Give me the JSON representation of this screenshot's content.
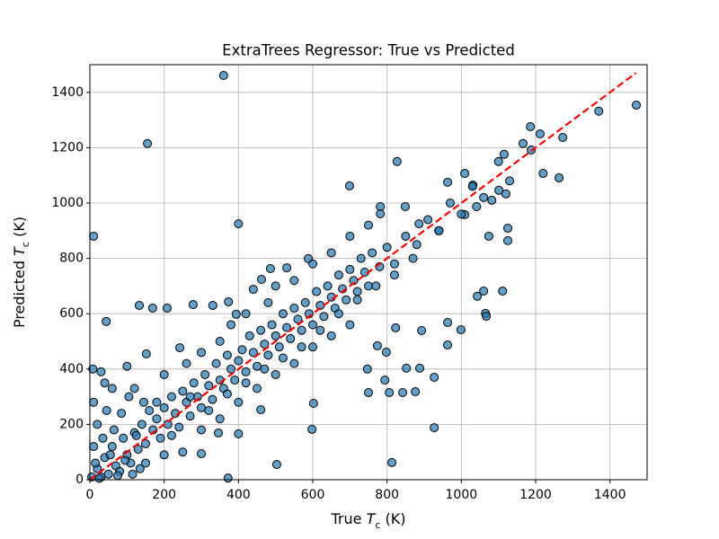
{
  "chart_data": {
    "type": "scatter",
    "title": "ExtraTrees Regressor: True vs Predicted",
    "xlabel": [
      "True ",
      "T",
      "c",
      " (K)"
    ],
    "ylabel": [
      "Predicted ",
      "T",
      "c",
      " (K)"
    ],
    "xlim": [
      0,
      1500
    ],
    "ylim": [
      0,
      1500
    ],
    "xticks": [
      0,
      200,
      400,
      600,
      800,
      1000,
      1200,
      1400
    ],
    "yticks": [
      0,
      200,
      400,
      600,
      800,
      1000,
      1200,
      1400
    ],
    "grid": true,
    "x": [
      360,
      155,
      10,
      400,
      372,
      813,
      503,
      927,
      1471,
      1370,
      1186,
      1212,
      1273,
      1166,
      1188,
      1115,
      827,
      699,
      1263,
      1220,
      1009,
      963,
      1101,
      1120,
      849,
      782,
      1031,
      1041,
      1082,
      1125,
      1125,
      1074,
      1009,
      939,
      886,
      782,
      44,
      133,
      169,
      208,
      278,
      242,
      152,
      1065,
      1043,
      1060,
      1067,
      1111,
      963,
      963,
      893,
      999,
      823,
      774,
      747,
      750,
      794,
      806,
      852,
      888,
      842,
      876,
      927,
      798,
      602,
      598,
      460,
      346,
      400,
      300,
      530,
      486,
      588,
      462,
      440,
      373,
      331,
      394,
      20,
      30,
      40,
      50,
      60,
      70,
      80,
      90,
      100,
      110,
      120,
      130,
      140,
      150,
      160,
      170,
      180,
      190,
      200,
      210,
      220,
      230,
      240,
      250,
      260,
      270,
      280,
      290,
      300,
      310,
      320,
      330,
      340,
      350,
      360,
      370,
      380,
      390,
      400,
      410,
      420,
      430,
      440,
      450,
      460,
      470,
      480,
      490,
      500,
      510,
      520,
      530,
      540,
      550,
      560,
      570,
      580,
      590,
      600,
      610,
      620,
      630,
      640,
      650,
      660,
      670,
      680,
      690,
      700,
      710,
      720,
      730,
      740,
      750,
      760,
      780,
      800,
      820,
      850,
      880,
      910,
      940,
      970,
      1000,
      1030,
      1060,
      1100,
      1130,
      5,
      10,
      15,
      20,
      25,
      35,
      45,
      55,
      65,
      75,
      85,
      95,
      105,
      115,
      125,
      135,
      145,
      10,
      30,
      60,
      8,
      40,
      100,
      120,
      200,
      260,
      300,
      350,
      380,
      420,
      480,
      500,
      550,
      600,
      650,
      700,
      750,
      300,
      350,
      400,
      450,
      500,
      550,
      600,
      650,
      700,
      250,
      200,
      150,
      180,
      220,
      270,
      320,
      370,
      420,
      470,
      520,
      570,
      620,
      670,
      720,
      770,
      820,
      870
    ],
    "series": [
      {
        "color": "#1f77b4",
        "edgecolor": "#000000",
        "alpha": 0.7,
        "values": [
          1461,
          1215,
          880,
          925,
          6,
          62,
          55,
          188,
          1354,
          1332,
          1276,
          1250,
          1237,
          1215,
          1192,
          1176,
          1150,
          1062,
          1091,
          1107,
          1107,
          1075,
          1046,
          1033,
          987,
          987,
          1065,
          987,
          1010,
          909,
          864,
          880,
          958,
          900,
          925,
          961,
          572,
          630,
          620,
          620,
          633,
          477,
          455,
          601,
          663,
          682,
          591,
          682,
          568,
          487,
          539,
          542,
          549,
          484,
          400,
          315,
          360,
          315,
          403,
          403,
          315,
          318,
          370,
          461,
          276,
          182,
          253,
          169,
          166,
          94,
          766,
          763,
          799,
          724,
          688,
          643,
          630,
          598,
          40,
          10,
          80,
          20,
          120,
          50,
          30,
          150,
          90,
          60,
          170,
          110,
          200,
          130,
          250,
          180,
          220,
          150,
          260,
          200,
          300,
          240,
          190,
          320,
          280,
          230,
          350,
          300,
          260,
          380,
          340,
          290,
          420,
          360,
          330,
          450,
          400,
          360,
          430,
          470,
          390,
          520,
          460,
          410,
          540,
          490,
          450,
          560,
          520,
          480,
          600,
          550,
          510,
          620,
          580,
          540,
          640,
          600,
          560,
          680,
          630,
          590,
          700,
          660,
          620,
          740,
          690,
          650,
          760,
          720,
          680,
          800,
          750,
          700,
          820,
          770,
          840,
          780,
          880,
          850,
          940,
          900,
          1000,
          960,
          1060,
          1020,
          1150,
          1080,
          10,
          120,
          60,
          200,
          5,
          150,
          250,
          90,
          180,
          15,
          240,
          70,
          300,
          20,
          160,
          40,
          280,
          280,
          390,
          330,
          400,
          350,
          410,
          330,
          380,
          420,
          460,
          500,
          560,
          600,
          640,
          700,
          720,
          780,
          820,
          880,
          920,
          180,
          220,
          280,
          330,
          380,
          420,
          480,
          520,
          560,
          100,
          90,
          60,
          280,
          160,
          300,
          250,
          310,
          350,
          400,
          440,
          480,
          540,
          600,
          650,
          700,
          740,
          800
        ]
      }
    ],
    "reference_line": {
      "x": [
        0,
        1470
      ],
      "y": [
        0,
        1470
      ],
      "color": "#ff0000",
      "dash": true
    }
  }
}
